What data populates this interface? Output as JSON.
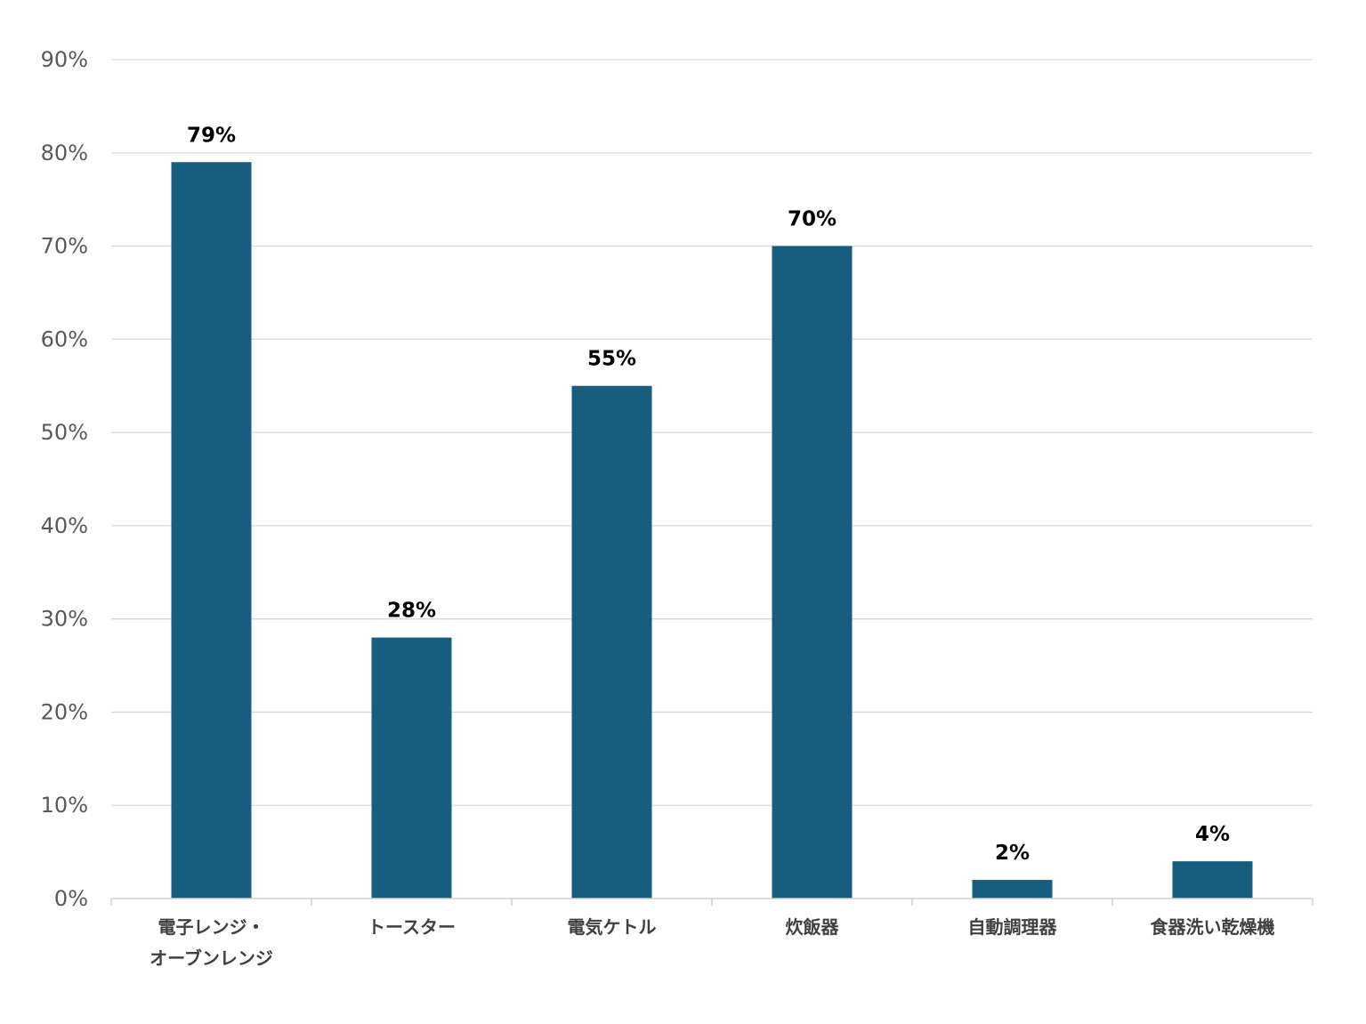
{
  "chart_data": {
    "type": "bar",
    "title": "",
    "xlabel": "",
    "ylabel": "",
    "categories": [
      [
        "電子レンジ・",
        "オーブンレンジ"
      ],
      [
        "トースター"
      ],
      [
        "電気ケトル"
      ],
      [
        "炊飯器"
      ],
      [
        "自動調理器"
      ],
      [
        "食器洗い乾燥機"
      ]
    ],
    "values": [
      79,
      28,
      55,
      70,
      2,
      4
    ],
    "value_labels": [
      "79%",
      "28%",
      "55%",
      "70%",
      "2%",
      "4%"
    ],
    "ylim": [
      0,
      90
    ],
    "yticks": [
      0,
      10,
      20,
      30,
      40,
      50,
      60,
      70,
      80,
      90
    ],
    "ytick_labels": [
      "0%",
      "10%",
      "20%",
      "30%",
      "40%",
      "50%",
      "60%",
      "70%",
      "80%",
      "90%"
    ],
    "grid": true,
    "legend": "none",
    "colors": {
      "bar": "#175e7e",
      "grid": "#d9d9d9",
      "axis": "#d0d0d0"
    }
  }
}
